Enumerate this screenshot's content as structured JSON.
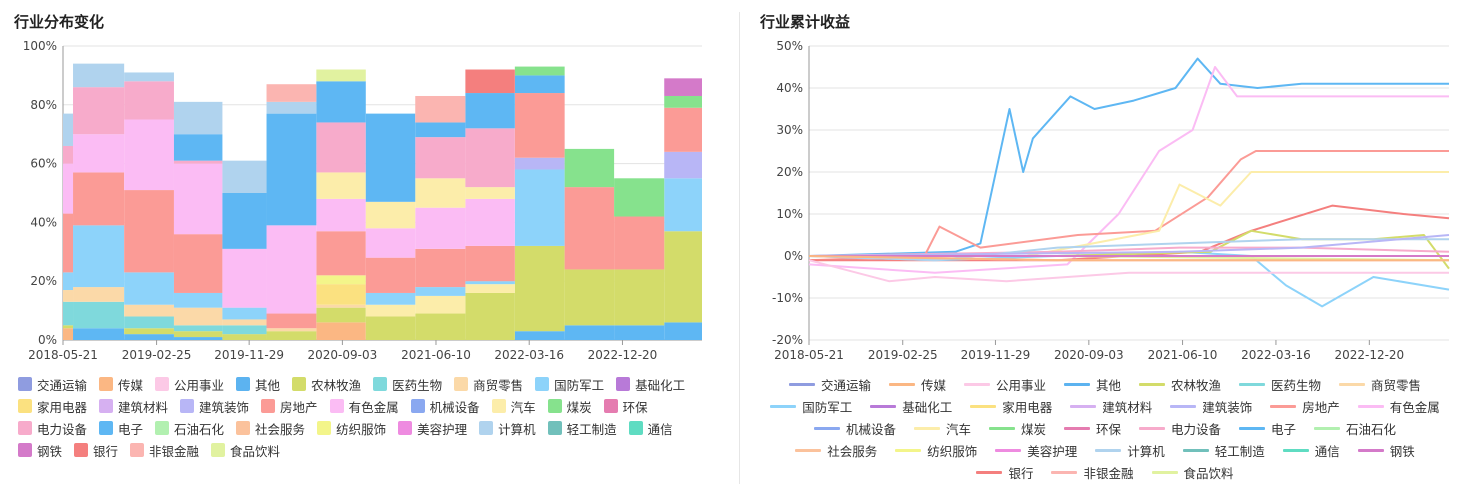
{
  "left_title": "行业分布变化",
  "right_title": "行业累计收益",
  "industries": [
    {
      "name": "交通运输",
      "color": "#8f9ce0"
    },
    {
      "name": "传媒",
      "color": "#fbb783"
    },
    {
      "name": "公用事业",
      "color": "#fcc9e6"
    },
    {
      "name": "其他",
      "color": "#5cb3f0"
    },
    {
      "name": "农林牧渔",
      "color": "#d3dc6a"
    },
    {
      "name": "医药生物",
      "color": "#7fd9dc"
    },
    {
      "name": "商贸零售",
      "color": "#fbd9a8"
    },
    {
      "name": "国防军工",
      "color": "#8dd3fa"
    },
    {
      "name": "基础化工",
      "color": "#b87ad8"
    },
    {
      "name": "家用电器",
      "color": "#fbe180"
    },
    {
      "name": "建筑材料",
      "color": "#d6b0f1"
    },
    {
      "name": "建筑装饰",
      "color": "#b8b6f6"
    },
    {
      "name": "房地产",
      "color": "#fb9b96"
    },
    {
      "name": "有色金属",
      "color": "#fbbcf4"
    },
    {
      "name": "机械设备",
      "color": "#8aa8f0"
    },
    {
      "name": "汽车",
      "color": "#fcedaa"
    },
    {
      "name": "煤炭",
      "color": "#86e28d"
    },
    {
      "name": "环保",
      "color": "#e57cb0"
    },
    {
      "name": "电力设备",
      "color": "#f7abcb"
    },
    {
      "name": "电子",
      "color": "#5eb7f3"
    },
    {
      "name": "石油石化",
      "color": "#b2f0b0"
    },
    {
      "name": "社会服务",
      "color": "#fbc29c"
    },
    {
      "name": "纺织服饰",
      "color": "#f3f58a"
    },
    {
      "name": "美容护理",
      "color": "#ee8be0"
    },
    {
      "name": "计算机",
      "color": "#b0d3ee"
    },
    {
      "name": "轻工制造",
      "color": "#71c0bb"
    },
    {
      "name": "通信",
      "color": "#5fdcc2"
    },
    {
      "name": "钢铁",
      "color": "#d47ac9"
    },
    {
      "name": "银行",
      "color": "#f47f7e"
    },
    {
      "name": "非银金融",
      "color": "#fbb5b1"
    },
    {
      "name": "食品饮料",
      "color": "#e1f2a0"
    }
  ],
  "chart_data": [
    {
      "type": "area",
      "subtype": "stacked-step",
      "title": "行业分布变化",
      "x_ticks": [
        "2018-05-21",
        "2019-02-25",
        "2019-11-29",
        "2020-09-03",
        "2021-06-10",
        "2022-03-16",
        "2022-12-20"
      ],
      "y_ticks": [
        "0%",
        "20%",
        "40%",
        "60%",
        "80%",
        "100%"
      ],
      "ylim": [
        0,
        100
      ],
      "x_range": [
        "2018-05-21",
        "2023-08-15"
      ],
      "grid": "horizontal",
      "legend": "bottom",
      "periods": [
        "2018-05-21",
        "2018-06-20",
        "2018-11-20",
        "2019-04-18",
        "2019-09-10",
        "2020-01-20",
        "2020-06-17",
        "2020-11-12",
        "2021-04-09",
        "2021-09-06",
        "2022-02-01",
        "2022-06-30",
        "2022-11-25",
        "2023-04-24"
      ],
      "series": [
        {
          "name": "传媒",
          "values": [
            4,
            0,
            0,
            0,
            0,
            0,
            6,
            0,
            0,
            0,
            0,
            0,
            0,
            0
          ]
        },
        {
          "name": "电子",
          "values": [
            0,
            4,
            2,
            1,
            0,
            0,
            0,
            0,
            0,
            0,
            3,
            5,
            5,
            6
          ]
        },
        {
          "name": "农林牧渔",
          "values": [
            1,
            0,
            2,
            2,
            2,
            3,
            5,
            8,
            9,
            16,
            29,
            19,
            19,
            31
          ]
        },
        {
          "name": "医药生物",
          "values": [
            8,
            9,
            4,
            2,
            3,
            0,
            0,
            0,
            0,
            0,
            0,
            0,
            0,
            0
          ]
        },
        {
          "name": "商贸零售",
          "values": [
            4,
            5,
            4,
            6,
            2,
            1,
            1,
            0,
            0,
            0,
            0,
            0,
            0,
            0
          ]
        },
        {
          "name": "家用电器",
          "values": [
            0,
            0,
            0,
            0,
            0,
            0,
            7,
            0,
            0,
            0,
            0,
            0,
            0,
            0
          ]
        },
        {
          "name": "纺织服饰",
          "values": [
            0,
            0,
            0,
            0,
            0,
            0,
            3,
            0,
            0,
            0,
            0,
            0,
            0,
            0
          ]
        },
        {
          "name": "汽车",
          "values": [
            0,
            0,
            0,
            0,
            0,
            0,
            0,
            4,
            6,
            3,
            0,
            0,
            0,
            0
          ]
        },
        {
          "name": "国防军工",
          "values": [
            6,
            21,
            11,
            5,
            4,
            0,
            0,
            4,
            3,
            1,
            26,
            0,
            0,
            18
          ]
        },
        {
          "name": "建筑装饰",
          "values": [
            0,
            0,
            0,
            0,
            0,
            0,
            0,
            0,
            0,
            0,
            4,
            0,
            0,
            9
          ]
        },
        {
          "name": "房地产",
          "values": [
            20,
            18,
            28,
            20,
            0,
            5,
            15,
            12,
            13,
            12,
            22,
            28,
            18,
            15
          ]
        },
        {
          "name": "有色金属",
          "values": [
            17,
            13,
            24,
            24,
            20,
            30,
            11,
            10,
            14,
            16,
            0,
            0,
            0,
            0
          ]
        },
        {
          "name": "汽车",
          "values": [
            0,
            0,
            0,
            0,
            0,
            0,
            9,
            9,
            10,
            4,
            0,
            0,
            0,
            0
          ]
        },
        {
          "name": "电力设备",
          "values": [
            6,
            16,
            13,
            1,
            0,
            0,
            17,
            0,
            14,
            20,
            0,
            0,
            0,
            0
          ]
        },
        {
          "name": "电子",
          "values": [
            0,
            0,
            0,
            9,
            19,
            38,
            14,
            30,
            5,
            12,
            6,
            0,
            0,
            0
          ]
        },
        {
          "name": "煤炭",
          "values": [
            0,
            0,
            0,
            0,
            0,
            0,
            0,
            0,
            0,
            0,
            3,
            13,
            13,
            4
          ]
        },
        {
          "name": "计算机",
          "values": [
            11,
            8,
            3,
            11,
            11,
            4,
            0,
            0,
            0,
            0,
            0,
            0,
            0,
            0
          ]
        },
        {
          "name": "食品饮料",
          "values": [
            0,
            0,
            0,
            0,
            0,
            0,
            4,
            0,
            0,
            0,
            0,
            0,
            0,
            0
          ]
        },
        {
          "name": "非银金融",
          "values": [
            0,
            0,
            0,
            0,
            0,
            6,
            0,
            0,
            9,
            0,
            0,
            0,
            0,
            0
          ]
        },
        {
          "name": "银行",
          "values": [
            0,
            0,
            0,
            0,
            0,
            0,
            0,
            0,
            0,
            8,
            0,
            0,
            0,
            0
          ]
        },
        {
          "name": "钢铁",
          "values": [
            0,
            0,
            0,
            0,
            0,
            0,
            0,
            0,
            0,
            0,
            0,
            0,
            0,
            6
          ]
        }
      ]
    },
    {
      "type": "line",
      "title": "行业累计收益",
      "x_ticks": [
        "2018-05-21",
        "2019-02-25",
        "2019-11-29",
        "2020-09-03",
        "2021-06-10",
        "2022-03-16",
        "2022-12-20"
      ],
      "y_ticks": [
        "-20%",
        "-10%",
        "0%",
        "10%",
        "20%",
        "30%",
        "40%",
        "50%"
      ],
      "ylim": [
        -20,
        50
      ],
      "x_range": [
        "2018-05-21",
        "2023-08-15"
      ],
      "grid": "horizontal",
      "legend": "bottom",
      "series": [
        {
          "name": "电子",
          "x": [
            "2018-05-21",
            "2019-08-01",
            "2019-10-15",
            "2020-01-10",
            "2020-02-20",
            "2020-03-20",
            "2020-07-10",
            "2020-09-20",
            "2021-01-15",
            "2021-05-20",
            "2021-07-25",
            "2021-10-01",
            "2022-01-20",
            "2022-06-01",
            "2023-08-15"
          ],
          "y": [
            0,
            1,
            3,
            35,
            20,
            28,
            38,
            35,
            37,
            40,
            47,
            41,
            40,
            41,
            41
          ]
        },
        {
          "name": "有色金属",
          "x": [
            "2018-05-21",
            "2019-06-01",
            "2020-07-01",
            "2020-12-01",
            "2021-04-01",
            "2021-07-10",
            "2021-09-15",
            "2021-11-20",
            "2022-02-10",
            "2023-08-15"
          ],
          "y": [
            -2,
            -4,
            -2,
            10,
            25,
            30,
            45,
            38,
            38,
            38
          ]
        },
        {
          "name": "房地产",
          "x": [
            "2018-05-21",
            "2019-05-01",
            "2019-06-15",
            "2019-10-15",
            "2020-08-01",
            "2021-03-20",
            "2021-08-25",
            "2021-12-01",
            "2022-01-15",
            "2023-08-15"
          ],
          "y": [
            -1,
            0,
            7,
            2,
            5,
            6,
            14,
            23,
            25,
            25
          ]
        },
        {
          "name": "汽车",
          "x": [
            "2018-05-21",
            "2020-03-01",
            "2021-04-01",
            "2021-06-01",
            "2021-10-01",
            "2022-01-01",
            "2023-08-15"
          ],
          "y": [
            0,
            0,
            6,
            17,
            12,
            20,
            20
          ]
        },
        {
          "name": "银行",
          "x": [
            "2018-05-21",
            "2020-06-01",
            "2021-08-01",
            "2022-01-01",
            "2022-09-01",
            "2023-04-01",
            "2023-08-15"
          ],
          "y": [
            -1,
            -1,
            1,
            6,
            12,
            10,
            9
          ]
        },
        {
          "name": "国防军工",
          "x": [
            "2018-05-21",
            "2019-06-01",
            "2021-06-01",
            "2022-01-01",
            "2022-04-15",
            "2022-08-01",
            "2023-01-01",
            "2023-08-15"
          ],
          "y": [
            0,
            -1,
            1,
            0,
            -7,
            -12,
            -5,
            -8
          ]
        },
        {
          "name": "农林牧渔",
          "x": [
            "2018-05-21",
            "2020-06-01",
            "2021-09-01",
            "2022-01-01",
            "2022-06-01",
            "2023-01-01",
            "2023-06-01",
            "2023-08-15"
          ],
          "y": [
            0,
            0,
            1,
            6,
            4,
            4,
            5,
            -3
          ]
        },
        {
          "name": "电力设备",
          "x": [
            "2018-05-21",
            "2020-06-01",
            "2021-06-01",
            "2022-06-01",
            "2023-08-15"
          ],
          "y": [
            0,
            1,
            2,
            2,
            1
          ]
        },
        {
          "name": "计算机",
          "x": [
            "2018-05-21",
            "2019-06-01",
            "2020-06-01",
            "2021-06-01",
            "2022-06-01",
            "2023-08-15"
          ],
          "y": [
            0,
            -1,
            2,
            3,
            4,
            4
          ]
        },
        {
          "name": "建筑装饰",
          "x": [
            "2018-05-21",
            "2021-06-01",
            "2022-06-01",
            "2023-08-15"
          ],
          "y": [
            0,
            1,
            2,
            5
          ]
        },
        {
          "name": "商贸零售",
          "x": [
            "2018-05-21",
            "2020-06-01",
            "2023-08-15"
          ],
          "y": [
            0,
            -1,
            -1
          ]
        },
        {
          "name": "医药生物",
          "x": [
            "2018-05-21",
            "2020-06-01",
            "2023-08-15"
          ],
          "y": [
            0,
            0,
            0
          ]
        },
        {
          "name": "非银金融",
          "x": [
            "2018-05-21",
            "2020-06-01",
            "2023-08-15"
          ],
          "y": [
            0,
            -1,
            -1
          ]
        },
        {
          "name": "食品饮料",
          "x": [
            "2018-05-21",
            "2020-06-01",
            "2023-08-15"
          ],
          "y": [
            0,
            0,
            -1
          ]
        },
        {
          "name": "钢铁",
          "x": [
            "2018-05-21",
            "2022-06-01",
            "2023-08-15"
          ],
          "y": [
            0,
            0,
            0
          ]
        },
        {
          "name": "传媒",
          "x": [
            "2018-05-21",
            "2020-06-01",
            "2023-08-15"
          ],
          "y": [
            0,
            -1,
            -1
          ]
        },
        {
          "name": "公用事业",
          "x": [
            "2018-05-21",
            "2019-01-15",
            "2019-06-01",
            "2020-01-01",
            "2020-07-01",
            "2021-01-01",
            "2023-08-15"
          ],
          "y": [
            -1,
            -6,
            -5,
            -6,
            -5,
            -4,
            -4
          ]
        }
      ]
    }
  ]
}
